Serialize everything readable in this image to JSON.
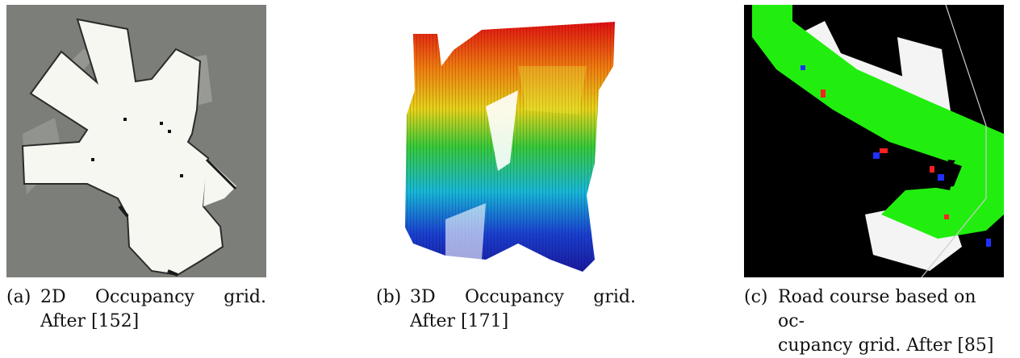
{
  "figures": [
    {
      "tag": "(a)",
      "line1": "2D Occupancy grid.",
      "line2": "After [152]"
    },
    {
      "tag": "(b)",
      "line1": "3D Occupancy grid.",
      "line2": "After [171]"
    },
    {
      "tag": "(c)",
      "line1": "Road course based on oc-",
      "line2": "cupancy grid. After [85]"
    }
  ],
  "colors": {
    "grid_gray": "#7c7f79",
    "free_white": "#f7f7f2",
    "road_green": "#21ee0f",
    "black": "#000000"
  }
}
